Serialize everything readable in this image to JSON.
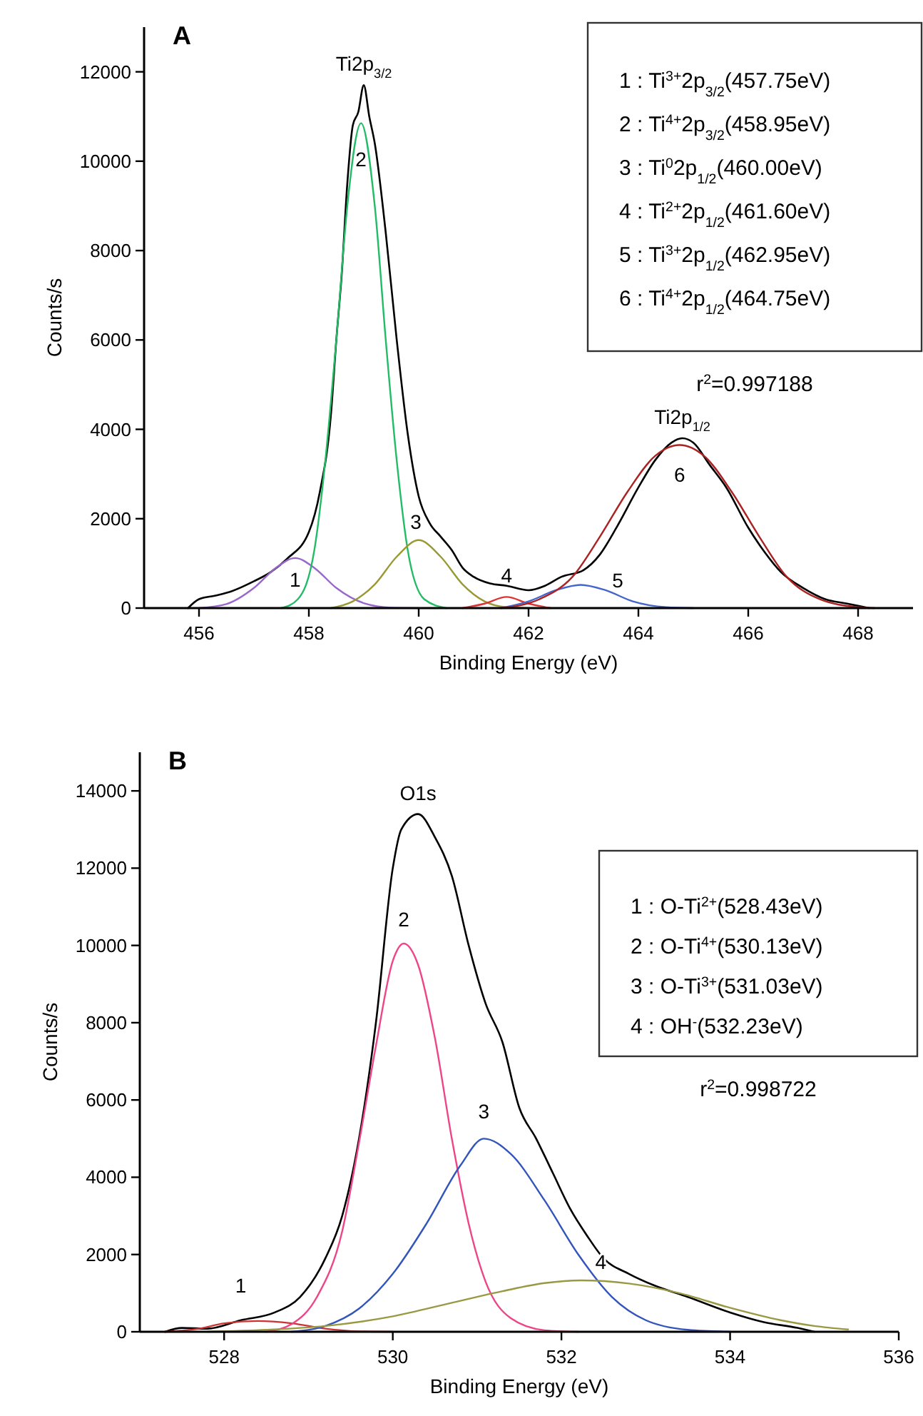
{
  "chart_data": [
    {
      "type": "line",
      "title": "A",
      "xlabel": "Binding Energy (eV)",
      "ylabel": "Counts/s",
      "xlim": [
        455,
        469
      ],
      "xticks": [
        456,
        458,
        460,
        462,
        464,
        466,
        468
      ],
      "ylim": [
        0,
        13000
      ],
      "yticks": [
        0,
        2000,
        4000,
        6000,
        8000,
        10000,
        12000
      ],
      "series": [
        {
          "color": "#000000",
          "x": [
            455.8,
            456.0,
            456.3,
            456.6,
            457.0,
            457.3,
            457.6,
            458.0,
            458.2,
            458.4,
            458.5,
            458.6,
            458.7,
            458.8,
            458.9,
            459.0,
            459.1,
            459.2,
            459.4,
            459.6,
            459.8,
            460.0,
            460.2,
            460.4,
            460.6,
            460.8,
            461.0,
            461.3,
            461.6,
            462.0,
            462.3,
            462.6,
            463.0,
            463.3,
            463.6,
            464.0,
            464.3,
            464.6,
            464.8,
            465.0,
            465.3,
            465.6,
            466.0,
            466.3,
            466.6,
            467.0,
            467.4,
            467.8,
            468.2
          ],
          "values": [
            0,
            200,
            280,
            380,
            600,
            800,
            1100,
            1700,
            2600,
            4300,
            6000,
            7500,
            9500,
            10800,
            11100,
            11700,
            11000,
            10400,
            8400,
            6000,
            3900,
            2500,
            1900,
            1600,
            1300,
            900,
            700,
            550,
            500,
            400,
            500,
            700,
            850,
            1200,
            1800,
            2700,
            3300,
            3700,
            3800,
            3700,
            3200,
            2700,
            1800,
            1250,
            800,
            450,
            200,
            100,
            0
          ]
        },
        {
          "name": "1",
          "color": "#9966cc",
          "x": [
            456.0,
            456.5,
            457.0,
            457.4,
            457.75,
            458.1,
            458.5,
            459.0,
            459.5,
            460.0
          ],
          "values": [
            0,
            90,
            450,
            900,
            1120,
            900,
            450,
            110,
            10,
            0
          ]
        },
        {
          "name": "2",
          "color": "#22bb66",
          "x": [
            457.5,
            457.8,
            458.1,
            458.3,
            458.5,
            458.7,
            458.95,
            459.2,
            459.4,
            459.6,
            459.8,
            460.1,
            460.5
          ],
          "values": [
            0,
            200,
            1300,
            3300,
            6000,
            9000,
            10850,
            9000,
            6000,
            3300,
            1300,
            200,
            0
          ]
        },
        {
          "name": "3",
          "color": "#999933",
          "x": [
            458.4,
            458.8,
            459.2,
            459.6,
            460.0,
            460.4,
            460.8,
            461.2,
            461.6,
            462.0
          ],
          "values": [
            0,
            150,
            530,
            1150,
            1520,
            1150,
            530,
            150,
            20,
            0
          ]
        },
        {
          "name": "4",
          "color": "#dd3333",
          "x": [
            460.8,
            461.2,
            461.6,
            462.0,
            462.4
          ],
          "values": [
            0,
            100,
            250,
            100,
            0
          ]
        },
        {
          "name": "5",
          "color": "#4466cc",
          "x": [
            461.5,
            462.0,
            462.5,
            462.95,
            463.4,
            463.9,
            464.5,
            465.0
          ],
          "values": [
            0,
            150,
            400,
            520,
            400,
            150,
            20,
            0
          ]
        },
        {
          "name": "6",
          "color": "#aa2222",
          "x": [
            461.5,
            462.2,
            462.8,
            463.3,
            463.8,
            464.3,
            464.75,
            465.2,
            465.7,
            466.2,
            466.7,
            467.3,
            468.0,
            468.3
          ],
          "values": [
            0,
            200,
            700,
            1600,
            2600,
            3400,
            3650,
            3400,
            2600,
            1600,
            700,
            200,
            20,
            0
          ]
        }
      ],
      "annotations": [
        {
          "text": "Ti2p$_{3/2}$",
          "x": 459.0,
          "y": 11700
        },
        {
          "text": "Ti2p$_{1/2}$",
          "x": 464.8,
          "y": 3800
        },
        "1 : Ti$^{3+}$2p$_{3/2}$(457.75eV)",
        "2 : Ti$^{4+}$2p$_{3/2}$(458.95eV)",
        "3 : Ti$^{0}$2p$_{1/2}$(460.00eV)",
        "4 : Ti$^{2+}$2p$_{1/2}$(461.60eV)",
        "5 : Ti$^{3+}$2p$_{1/2}$(462.95eV)",
        "6 : Ti$^{4+}$2p$_{1/2}$(464.75eV)",
        "r$^{2}$=0.997188"
      ]
    },
    {
      "type": "line",
      "title": "B",
      "xlabel": "Binding Energy (eV)",
      "ylabel": "Counts/s",
      "xlim": [
        527,
        536
      ],
      "xticks": [
        528,
        530,
        532,
        534,
        536
      ],
      "ylim": [
        0,
        15000
      ],
      "yticks": [
        0,
        2000,
        4000,
        6000,
        8000,
        10000,
        12000,
        14000
      ],
      "series": [
        {
          "color": "#000000",
          "x": [
            527.3,
            527.5,
            527.8,
            528.2,
            528.6,
            528.9,
            529.2,
            529.4,
            529.6,
            529.8,
            530.0,
            530.1,
            530.3,
            530.5,
            530.7,
            530.9,
            531.1,
            531.3,
            531.5,
            531.7,
            531.9,
            532.1,
            532.3,
            532.5,
            532.8,
            533.1,
            533.5,
            534.0,
            534.4,
            534.8,
            535.0
          ],
          "values": [
            0,
            100,
            80,
            300,
            500,
            900,
            1900,
            3000,
            5000,
            8000,
            12000,
            13000,
            13400,
            12800,
            11800,
            10000,
            8500,
            7500,
            5800,
            5000,
            4100,
            3200,
            2500,
            1900,
            1500,
            1200,
            900,
            500,
            250,
            100,
            0
          ]
        },
        {
          "name": "1",
          "color": "#cc3333",
          "x": [
            527.3,
            527.7,
            528.0,
            528.4,
            528.8,
            529.2,
            529.6,
            530.0
          ],
          "values": [
            0,
            80,
            220,
            280,
            220,
            80,
            10,
            0
          ]
        },
        {
          "name": "2",
          "color": "#ee4488",
          "x": [
            528.5,
            528.8,
            529.1,
            529.4,
            529.6,
            529.8,
            530.0,
            530.13,
            530.3,
            530.5,
            530.7,
            530.9,
            531.1,
            531.4,
            531.8,
            532.2
          ],
          "values": [
            0,
            200,
            900,
            2600,
            4900,
            7400,
            9600,
            10050,
            9500,
            7600,
            5000,
            2800,
            1300,
            350,
            40,
            0
          ]
        },
        {
          "name": "3",
          "color": "#3355bb",
          "x": [
            528.8,
            529.2,
            529.6,
            530.0,
            530.4,
            530.8,
            531.08,
            531.4,
            531.8,
            532.2,
            532.6,
            533.0,
            533.5,
            534.0
          ],
          "values": [
            0,
            150,
            600,
            1500,
            2800,
            4300,
            5000,
            4600,
            3400,
            2000,
            900,
            300,
            50,
            0
          ]
        },
        {
          "name": "4",
          "color": "#999944",
          "x": [
            527.8,
            528.5,
            529.2,
            530.0,
            530.7,
            531.3,
            531.8,
            532.23,
            532.8,
            533.4,
            534.0,
            534.6,
            535.0,
            535.4
          ],
          "values": [
            0,
            50,
            150,
            400,
            750,
            1050,
            1260,
            1330,
            1250,
            1000,
            620,
            300,
            150,
            60
          ]
        }
      ],
      "annotations": [
        {
          "text": "O1s",
          "x": 530.3,
          "y": 13400
        },
        "1 : O-Ti$^{2+}$(528.43eV)",
        "2 : O-Ti$^{4+}$(530.13eV)",
        "3 : O-Ti$^{3+}$(531.03eV)",
        "4 : OH$^{-}$(532.23eV)",
        "r$^{2}$=0.998722"
      ]
    }
  ]
}
